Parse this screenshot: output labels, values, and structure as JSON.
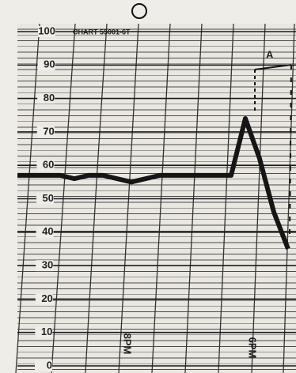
{
  "chart_data": {
    "type": "line",
    "title": "CHART 55001-6T",
    "annotations": [
      "A",
      "8PM",
      "6PM"
    ],
    "categories": [
      null,
      null,
      null,
      null,
      null,
      null,
      null,
      null,
      null,
      null,
      null,
      null,
      null,
      null,
      null,
      null,
      null,
      null,
      null,
      null
    ],
    "series": [
      {
        "name": null,
        "color": "#151515",
        "values": [
          57,
          57,
          57,
          57,
          56,
          57,
          57,
          56,
          55,
          56,
          57,
          57,
          57,
          57,
          57,
          57,
          74,
          62,
          46,
          35
        ]
      }
    ],
    "ylim": [
      0,
      100
    ],
    "yticks": [
      0,
      10,
      20,
      30,
      40,
      50,
      60,
      70,
      80,
      90,
      100
    ],
    "grid": true
  }
}
